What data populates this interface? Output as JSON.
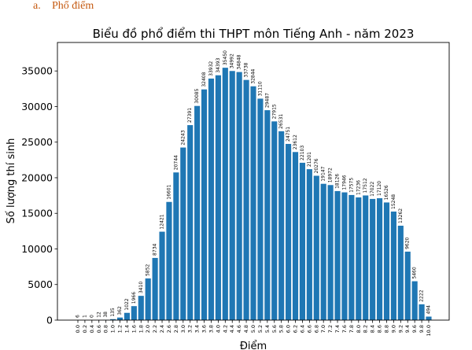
{
  "section_heading": {
    "number": "a.",
    "text": "Phổ điểm"
  },
  "chart_data": {
    "type": "bar",
    "title": "Biểu đồ phổ điểm thi THPT môn Tiếng Anh - năm 2023",
    "xlabel": "Điểm",
    "ylabel": "Số lượng thí sinh",
    "ylim": [
      0,
      39000
    ],
    "yticks": [
      0,
      5000,
      10000,
      15000,
      20000,
      25000,
      30000,
      35000
    ],
    "grid": false,
    "bar_color": "#1f77b4",
    "categories": [
      "0.0",
      "0.2",
      "0.4",
      "0.6",
      "0.8",
      "1.0",
      "1.2",
      "1.4",
      "1.6",
      "1.8",
      "2.0",
      "2.2",
      "2.4",
      "2.6",
      "2.8",
      "3.0",
      "3.2",
      "3.4",
      "3.6",
      "3.8",
      "4.0",
      "4.2",
      "4.4",
      "4.6",
      "4.8",
      "5.0",
      "5.2",
      "5.4",
      "5.6",
      "5.8",
      "6.0",
      "6.2",
      "6.4",
      "6.6",
      "6.8",
      "7.0",
      "7.2",
      "7.4",
      "7.6",
      "7.8",
      "8.0",
      "8.2",
      "8.4",
      "8.6",
      "8.8",
      "9.0",
      "9.2",
      "9.4",
      "9.6",
      "9.8",
      "10.0"
    ],
    "values": [
      6,
      1,
      0,
      12,
      38,
      135,
      362,
      1022,
      1966,
      3410,
      5852,
      8734,
      12421,
      16601,
      20744,
      24243,
      27391,
      30085,
      32408,
      33932,
      34393,
      35450,
      34992,
      34848,
      33738,
      32844,
      31110,
      29487,
      27915,
      26531,
      24751,
      23612,
      22103,
      21201,
      20276,
      19147,
      18972,
      18126,
      17946,
      17575,
      17236,
      17512,
      17022,
      17120,
      16526,
      15248,
      13262,
      9620,
      5460,
      2222,
      494
    ]
  }
}
